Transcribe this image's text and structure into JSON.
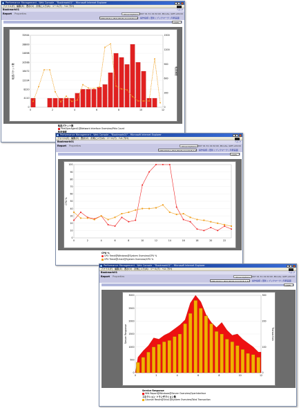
{
  "menu": [
    "ファイル(F)",
    "編集(E)",
    "表示(V)",
    "お気に入り(A)",
    "ツール(T)",
    "ヘルプ(H)"
  ],
  "window1": {
    "title": "Performance Management - Web Console - \"Bookmark01\" - Microsoft Internet Explorer",
    "dashboard": "Bookmark01",
    "help": "ヘルプ",
    "report_label": "Report",
    "properties_label": "Properties",
    "show_options": "Show Options",
    "date_range": "2007 01 31 19:32:00 -Minute- GMT+09:00",
    "select": "CPU Status (6U) (Multi-Agent)(6.1.2)",
    "links": "操作指標 | 更新 | ブックマーク | 印刷画面",
    "zoom": "100%",
    "colors": {
      "bars": "#e02020",
      "line": "#f0a020"
    },
    "chart_data": {
      "type": "bar",
      "categories": [
        "0",
        "1",
        "2",
        "3",
        "4",
        "5",
        "6",
        "7",
        "8",
        "9",
        "10",
        "11",
        "12",
        "13",
        "14",
        "15",
        "16",
        "17",
        "18",
        "19",
        "20",
        "21",
        "22",
        "23"
      ],
      "x_ticks": [
        "0",
        "2",
        "4",
        "6",
        "8",
        "10",
        "12"
      ],
      "y_ticks": [
        "0",
        "4110",
        "8220",
        "12334",
        "16472",
        "20566",
        "24698",
        "28800",
        "32944"
      ],
      "y2_ticks": [
        "0",
        "300",
        "600",
        "900",
        "1200",
        "1500"
      ],
      "ylabel": "転送パケット数",
      "y2label": "転送速度",
      "ylim": [
        0,
        32944
      ],
      "y2lim": [
        0,
        1500
      ],
      "series": [
        {
          "name": "PktsOperAgent1@Network Interface Overview/Pkts Count",
          "type": "bar",
          "values": [
            4110,
            0,
            0,
            4110,
            4110,
            4110,
            4110,
            4110,
            6400,
            8220,
            8220,
            8220,
            9200,
            10400,
            15800,
            24698,
            22800,
            19600,
            28800,
            20566,
            16472,
            4110,
            4110,
            0
          ]
        },
        {
          "name": "PktsSpeed@Agent1@Network Interface Overview/Pkts/sec",
          "type": "line",
          "values": [
            120,
            430,
            780,
            780,
            320,
            110,
            230,
            120,
            150,
            470,
            400,
            390,
            420,
            1250,
            1320,
            440,
            380,
            360,
            220,
            130,
            130,
            130,
            1010,
            90
          ]
        }
      ]
    },
    "legend": {
      "title": "転送パケット数",
      "items": [
        "PktsOperAgent1@Network Interface Overview/Pkts Count"
      ],
      "title2": "転送速度",
      "items2": [
        "PktsSpeed@Agent1@Network Interface Overview/Pkts/sec"
      ]
    }
  },
  "window2": {
    "title": "Performance Management - Web Console - \"Bookmark01\" - Microsoft Internet Explorer",
    "dashboard": "Bookmark01",
    "help": "ヘルプ",
    "report_label": "Report",
    "properties_label": "Properties",
    "show_options": "Show Options",
    "date_range": "2007 01 31 19:32:00 -Minute- GMT+09:00",
    "select": "CPU Status (6U) (Multi-Agent)(6.1.2)",
    "links": "操作指標 | 更新 | ブックマーク | 印刷画面",
    "zoom": "100%",
    "colors": {
      "windows": "#ee2020",
      "unix": "#f0a020"
    },
    "chart_data": {
      "type": "line",
      "x": [
        0,
        1,
        2,
        3,
        4,
        5,
        6,
        7,
        8,
        9,
        10,
        11,
        12,
        13,
        14,
        15,
        16,
        17,
        18,
        19,
        20,
        21,
        22,
        23
      ],
      "x_ticks": [
        "0",
        "2",
        "4",
        "6",
        "8",
        "10",
        "12",
        "14",
        "16",
        "18",
        "20",
        "22"
      ],
      "y_ticks": [
        "0",
        "10",
        "20",
        "30",
        "40",
        "50",
        "60",
        "70",
        "80",
        "90",
        "100"
      ],
      "ylabel": "CPU %",
      "ylim": [
        0,
        100
      ],
      "series": [
        {
          "name": "CPU Trend@Windows@System Overview/CPU %",
          "values": [
            24,
            35,
            28,
            26,
            30,
            18,
            16,
            28,
            22,
            24,
            72,
            90,
            100,
            100,
            100,
            42,
            25,
            22,
            12,
            10,
            14,
            10,
            16,
            12
          ]
        },
        {
          "name": "CPU Trend@Unix1@System Overview/CPU %",
          "values": [
            35,
            27,
            27,
            25,
            30,
            25,
            28,
            33,
            35,
            38,
            40,
            40,
            41,
            45,
            35,
            32,
            33,
            28,
            25,
            24,
            22,
            20,
            18,
            16
          ]
        }
      ]
    },
    "legend": {
      "title": "CPU %",
      "items": [
        "CPU Trend@Windows@System Overview/CPU %",
        "CPU Trend@Unix1@System Overview/CPU %"
      ]
    }
  },
  "window3": {
    "title": "Performance Management - Web Console - \"Bookmark01\" - Microsoft Internet Explorer",
    "dashboard": "Bookmark01",
    "help": "ヘルプ",
    "report_label": "Report",
    "properties_label": "Properties",
    "show_options": "Show Options",
    "date_range": "2007 01 31 19:32:00 -Minute- GMT+09:00",
    "select": "CPU Status (6U) (Multi-Agent)(6.1.2)",
    "links": "操作指標 | 更新 | ブックマーク | 印刷画面",
    "zoom": "100%",
    "colors": {
      "area": "#ee1111",
      "bars": "#f2b100"
    },
    "chart_data": {
      "type": "area",
      "categories": [
        "0",
        "1",
        "2",
        "3",
        "4",
        "5",
        "6",
        "7",
        "8",
        "9",
        "10",
        "11",
        "12",
        "13",
        "14",
        "15",
        "16",
        "17",
        "18",
        "19",
        "20",
        "21",
        "22",
        "23"
      ],
      "x_ticks": [
        "0",
        "2",
        "4",
        "6",
        "8",
        "10",
        "12"
      ],
      "y_ticks": [
        "0",
        "500",
        "1000",
        "1500",
        "2000",
        "2500",
        "3000"
      ],
      "y2_ticks": [
        "0",
        "100",
        "200",
        "300"
      ],
      "ylabel": "Server Response",
      "y2label": "Transaction",
      "ylim": [
        0,
        3000
      ],
      "y2lim": [
        0,
        300
      ],
      "series": [
        {
          "name": "Service Response",
          "type": "area",
          "values": [
            600,
            850,
            1050,
            1350,
            1300,
            1450,
            1550,
            1700,
            1850,
            2050,
            2700,
            3000,
            2750,
            2250,
            1950,
            1750,
            1950,
            1650,
            1450,
            1500,
            1300,
            1150,
            1000,
            800
          ]
        },
        {
          "name": "コネクション トランザクション数",
          "type": "bar",
          "values": [
            40,
            60,
            80,
            100,
            110,
            120,
            125,
            140,
            150,
            190,
            230,
            280,
            250,
            220,
            190,
            160,
            150,
            130,
            120,
            105,
            90,
            75,
            70,
            60
          ]
        }
      ]
    },
    "legend": {
      "title": "Service Response",
      "items": [
        "WW Report@Windows@Server Overview/OperInterface"
      ],
      "title2": "コネクション トランザクション数",
      "items2": [
        "Counsel Reach@Unix1@System Overview/Total Transaction"
      ]
    }
  }
}
